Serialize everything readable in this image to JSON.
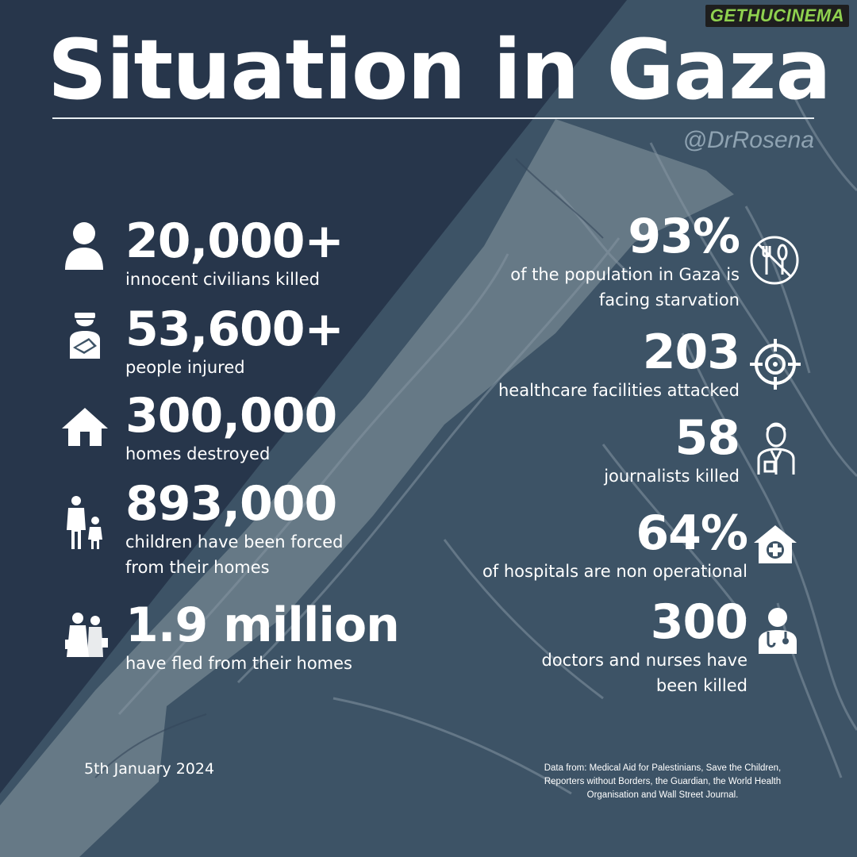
{
  "brand": {
    "part1": "GETHU",
    "part2": "CINEMA"
  },
  "title": "Situation in Gaza",
  "handle": "@DrRosena",
  "left_stats": [
    {
      "value": "20,000+",
      "desc": [
        "innocent civilians killed"
      ],
      "icon": "person-icon"
    },
    {
      "value": "53,600+",
      "desc": [
        "people injured"
      ],
      "icon": "injured-person-icon"
    },
    {
      "value": "300,000",
      "desc": [
        "homes destroyed"
      ],
      "icon": "house-icon"
    },
    {
      "value": "893,000",
      "desc": [
        "children have been forced",
        "from their homes"
      ],
      "icon": "parent-child-icon"
    },
    {
      "value": "1.9 million",
      "desc": [
        "have fled from their homes"
      ],
      "icon": "refugee-family-icon"
    }
  ],
  "right_stats": [
    {
      "value": "93%",
      "desc": [
        "of the population in Gaza is",
        "facing starvation"
      ],
      "icon": "no-food-icon"
    },
    {
      "value": "203",
      "desc": [
        "healthcare facilities attacked"
      ],
      "icon": "target-icon"
    },
    {
      "value": "58",
      "desc": [
        "journalists killed"
      ],
      "icon": "journalist-icon"
    },
    {
      "value": "64%",
      "desc": [
        "of hospitals are non operational"
      ],
      "icon": "hospital-icon"
    },
    {
      "value": "300",
      "desc": [
        "doctors and nurses have",
        "been killed"
      ],
      "icon": "doctor-icon"
    }
  ],
  "date": "5th January 2024",
  "sources": "Data from: Medical Aid for Palestinians, Save the Children, Reporters without Borders, the Guardian, the World Health Organisation and Wall Street Journal.",
  "colors": {
    "background_dark": "#27364b",
    "background_mid": "#3d5366",
    "strip": "#6a7d8a",
    "text": "#ffffff",
    "handle": "#8fa3b2",
    "brand_green": "#8fd14f"
  }
}
